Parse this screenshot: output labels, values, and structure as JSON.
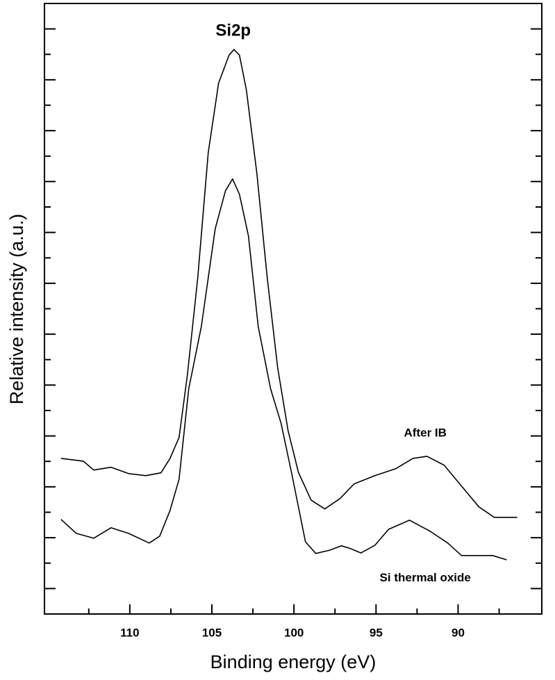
{
  "chart_data": {
    "type": "line",
    "xlabel": "Binding energy (eV)",
    "ylabel": "Relative intensity (a.u.)",
    "xlim": [
      115.2,
      84.9
    ],
    "xticks": [
      110,
      105,
      100,
      95,
      90
    ],
    "xminorticks": [
      112.5,
      107.5,
      102.5,
      97.5,
      92.5,
      87.5
    ],
    "ylim": [
      0,
      24
    ],
    "yticks": [
      1,
      2,
      3,
      4,
      5,
      6,
      7,
      8,
      9,
      10,
      11,
      12,
      13,
      14,
      15,
      16,
      17,
      18,
      19,
      20,
      21,
      22,
      23
    ],
    "ytick_labels_shown": false,
    "annotations": [
      {
        "text": "Si2p",
        "x": 103.7,
        "y": 22.9
      },
      {
        "text": "After IB",
        "x": 92.0,
        "y": 7.1
      },
      {
        "text": "Si thermal oxide",
        "x": 92.0,
        "y": 1.4
      }
    ],
    "series": [
      {
        "name": "After IB",
        "color": "#000000",
        "x": [
          114.19,
          112.83,
          112.2,
          111.14,
          110.08,
          109.03,
          108.1,
          107.55,
          107.0,
          106.49,
          105.86,
          105.22,
          104.59,
          103.95,
          103.66,
          103.32,
          102.9,
          102.26,
          101.63,
          100.99,
          100.36,
          99.73,
          98.96,
          98.12,
          97.19,
          96.34,
          95.07,
          93.81,
          92.75,
          91.9,
          90.85,
          89.79,
          88.73,
          87.8,
          86.4
        ],
        "values": [
          6.12,
          6.01,
          5.66,
          5.77,
          5.52,
          5.44,
          5.55,
          6.12,
          6.94,
          9.4,
          13.22,
          18.14,
          20.87,
          21.97,
          22.19,
          21.97,
          20.6,
          17.32,
          13.22,
          9.67,
          7.21,
          5.57,
          4.48,
          4.13,
          4.54,
          5.11,
          5.44,
          5.71,
          6.12,
          6.2,
          5.85,
          5.03,
          4.21,
          3.8,
          3.8
        ]
      },
      {
        "name": "Si thermal oxide",
        "color": "#000000",
        "x": [
          114.19,
          113.26,
          112.2,
          111.14,
          110.08,
          108.82,
          108.18,
          107.55,
          107.0,
          106.41,
          105.64,
          104.8,
          104.17,
          103.74,
          103.32,
          102.77,
          102.18,
          101.42,
          100.78,
          100.15,
          99.64,
          99.3,
          98.67,
          97.82,
          97.1,
          96.55,
          95.92,
          95.07,
          94.23,
          92.96,
          91.69,
          90.63,
          89.79,
          88.73,
          87.89,
          87.04
        ],
        "values": [
          3.72,
          3.17,
          2.98,
          3.39,
          3.17,
          2.79,
          3.06,
          4.07,
          5.3,
          8.85,
          11.31,
          15.14,
          16.64,
          17.1,
          16.5,
          14.86,
          11.31,
          8.85,
          7.49,
          5.57,
          3.93,
          2.84,
          2.38,
          2.51,
          2.68,
          2.57,
          2.4,
          2.7,
          3.33,
          3.69,
          3.25,
          2.79,
          2.3,
          2.3,
          2.3,
          2.13
        ]
      }
    ]
  }
}
